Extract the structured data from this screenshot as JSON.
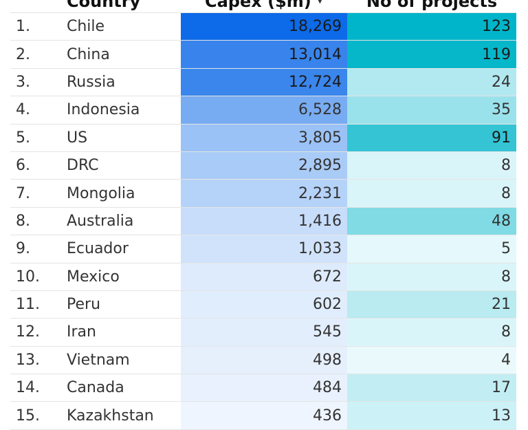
{
  "header": {
    "country": "Country",
    "capex": "Capex ($m)",
    "projects": "No of projects",
    "sort_icon": "sort-descending-icon"
  },
  "chart_data": {
    "type": "table",
    "columns": [
      "",
      "Country",
      "Capex ($m)",
      "No of projects"
    ],
    "rows": [
      {
        "rank": "1.",
        "country": "Chile",
        "capex": "18,269",
        "capex_value": 18269,
        "projects": "123",
        "projects_value": 123
      },
      {
        "rank": "2.",
        "country": "China",
        "capex": "13,014",
        "capex_value": 13014,
        "projects": "119",
        "projects_value": 119
      },
      {
        "rank": "3.",
        "country": "Russia",
        "capex": "12,724",
        "capex_value": 12724,
        "projects": "24",
        "projects_value": 24
      },
      {
        "rank": "4.",
        "country": "Indonesia",
        "capex": "6,528",
        "capex_value": 6528,
        "projects": "35",
        "projects_value": 35
      },
      {
        "rank": "5.",
        "country": "US",
        "capex": "3,805",
        "capex_value": 3805,
        "projects": "91",
        "projects_value": 91
      },
      {
        "rank": "6.",
        "country": "DRC",
        "capex": "2,895",
        "capex_value": 2895,
        "projects": "8",
        "projects_value": 8
      },
      {
        "rank": "7.",
        "country": "Mongolia",
        "capex": "2,231",
        "capex_value": 2231,
        "projects": "8",
        "projects_value": 8
      },
      {
        "rank": "8.",
        "country": "Australia",
        "capex": "1,416",
        "capex_value": 1416,
        "projects": "48",
        "projects_value": 48
      },
      {
        "rank": "9.",
        "country": "Ecuador",
        "capex": "1,033",
        "capex_value": 1033,
        "projects": "5",
        "projects_value": 5
      },
      {
        "rank": "10.",
        "country": "Mexico",
        "capex": "672",
        "capex_value": 672,
        "projects": "8",
        "projects_value": 8
      },
      {
        "rank": "11.",
        "country": "Peru",
        "capex": "602",
        "capex_value": 602,
        "projects": "21",
        "projects_value": 21
      },
      {
        "rank": "12.",
        "country": "Iran",
        "capex": "545",
        "capex_value": 545,
        "projects": "8",
        "projects_value": 8
      },
      {
        "rank": "13.",
        "country": "Vietnam",
        "capex": "498",
        "capex_value": 498,
        "projects": "4",
        "projects_value": 4
      },
      {
        "rank": "14.",
        "country": "Canada",
        "capex": "484",
        "capex_value": 484,
        "projects": "17",
        "projects_value": 17
      },
      {
        "rank": "15.",
        "country": "Kazakhstan",
        "capex": "436",
        "capex_value": 436,
        "projects": "13",
        "projects_value": 13
      }
    ],
    "capex_heat_colors": [
      "#eef5fe",
      "#0d6ae8"
    ],
    "projects_heat_colors": [
      "#eafafc",
      "#00b5c9"
    ]
  }
}
